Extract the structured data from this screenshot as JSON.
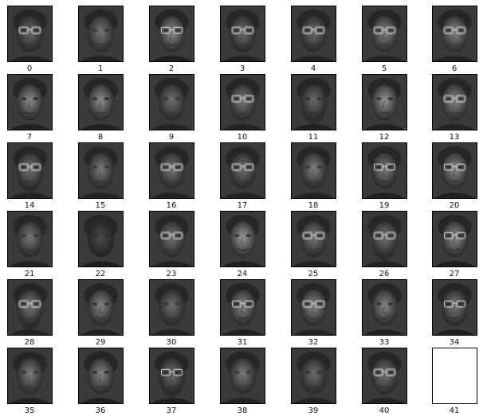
{
  "figure": {
    "panels": [
      {
        "label": "0",
        "tone": "#6a6a6a",
        "glasses": true,
        "beard": false,
        "blur": true
      },
      {
        "label": "1",
        "tone": "#7a7a7a",
        "glasses": false,
        "beard": false,
        "blur": true
      },
      {
        "label": "2",
        "tone": "#8f8f8f",
        "glasses": true,
        "beard": false,
        "blur": false
      },
      {
        "label": "3",
        "tone": "#707070",
        "glasses": true,
        "beard": false,
        "blur": true
      },
      {
        "label": "4",
        "tone": "#6e6e6e",
        "glasses": true,
        "beard": false,
        "blur": true
      },
      {
        "label": "5",
        "tone": "#858585",
        "glasses": true,
        "beard": false,
        "blur": true
      },
      {
        "label": "6",
        "tone": "#8a8a8a",
        "glasses": true,
        "beard": false,
        "blur": true
      },
      {
        "label": "7",
        "tone": "#8c8c8c",
        "glasses": false,
        "beard": false,
        "blur": false
      },
      {
        "label": "8",
        "tone": "#8e8e8e",
        "glasses": false,
        "beard": false,
        "blur": false
      },
      {
        "label": "9",
        "tone": "#747474",
        "glasses": false,
        "beard": false,
        "blur": true
      },
      {
        "label": "10",
        "tone": "#7c7c7c",
        "glasses": true,
        "beard": false,
        "blur": true
      },
      {
        "label": "11",
        "tone": "#6c6c6c",
        "glasses": false,
        "beard": true,
        "blur": false
      },
      {
        "label": "12",
        "tone": "#959595",
        "glasses": false,
        "beard": false,
        "blur": false
      },
      {
        "label": "13",
        "tone": "#8a8a8a",
        "glasses": true,
        "beard": false,
        "blur": true
      },
      {
        "label": "14",
        "tone": "#787878",
        "glasses": true,
        "beard": true,
        "blur": true
      },
      {
        "label": "15",
        "tone": "#7e7e7e",
        "glasses": false,
        "beard": false,
        "blur": true
      },
      {
        "label": "16",
        "tone": "#7a7a7a",
        "glasses": true,
        "beard": false,
        "blur": true
      },
      {
        "label": "17",
        "tone": "#727272",
        "glasses": true,
        "beard": false,
        "blur": true
      },
      {
        "label": "18",
        "tone": "#838383",
        "glasses": false,
        "beard": false,
        "blur": true
      },
      {
        "label": "19",
        "tone": "#808080",
        "glasses": true,
        "beard": false,
        "blur": false
      },
      {
        "label": "20",
        "tone": "#8e8e8e",
        "glasses": true,
        "beard": false,
        "blur": false
      },
      {
        "label": "21",
        "tone": "#7a7a7a",
        "glasses": false,
        "beard": false,
        "blur": true
      },
      {
        "label": "22",
        "tone": "#4a4a4a",
        "glasses": false,
        "beard": false,
        "blur": false
      },
      {
        "label": "23",
        "tone": "#767676",
        "glasses": true,
        "beard": false,
        "blur": true
      },
      {
        "label": "24",
        "tone": "#9a9a9a",
        "glasses": false,
        "beard": false,
        "blur": false
      },
      {
        "label": "25",
        "tone": "#7c7c7c",
        "glasses": true,
        "beard": false,
        "blur": true
      },
      {
        "label": "26",
        "tone": "#777777",
        "glasses": true,
        "beard": true,
        "blur": true
      },
      {
        "label": "27",
        "tone": "#8d8d8d",
        "glasses": true,
        "beard": false,
        "blur": false
      },
      {
        "label": "28",
        "tone": "#7a7a7a",
        "glasses": true,
        "beard": true,
        "blur": true
      },
      {
        "label": "29",
        "tone": "#868686",
        "glasses": false,
        "beard": false,
        "blur": false
      },
      {
        "label": "30",
        "tone": "#707070",
        "glasses": false,
        "beard": false,
        "blur": true
      },
      {
        "label": "31",
        "tone": "#888888",
        "glasses": true,
        "beard": false,
        "blur": false
      },
      {
        "label": "32",
        "tone": "#8a8a8a",
        "glasses": true,
        "beard": false,
        "blur": true
      },
      {
        "label": "33",
        "tone": "#868686",
        "glasses": false,
        "beard": false,
        "blur": false
      },
      {
        "label": "34",
        "tone": "#7a7a7a",
        "glasses": true,
        "beard": false,
        "blur": false
      },
      {
        "label": "35",
        "tone": "#7e7e7e",
        "glasses": false,
        "beard": false,
        "blur": true
      },
      {
        "label": "36",
        "tone": "#868686",
        "glasses": false,
        "beard": false,
        "blur": false
      },
      {
        "label": "37",
        "tone": "#6e6e6e",
        "glasses": true,
        "beard": true,
        "blur": false
      },
      {
        "label": "38",
        "tone": "#7c7c7c",
        "glasses": false,
        "beard": false,
        "blur": true
      },
      {
        "label": "39",
        "tone": "#6e6e6e",
        "glasses": false,
        "beard": false,
        "blur": true
      },
      {
        "label": "40",
        "tone": "#787878",
        "glasses": true,
        "beard": false,
        "blur": true
      },
      {
        "label": "41",
        "tone": "#ffffff",
        "glasses": false,
        "beard": false,
        "blur": false,
        "blank": true
      }
    ]
  }
}
